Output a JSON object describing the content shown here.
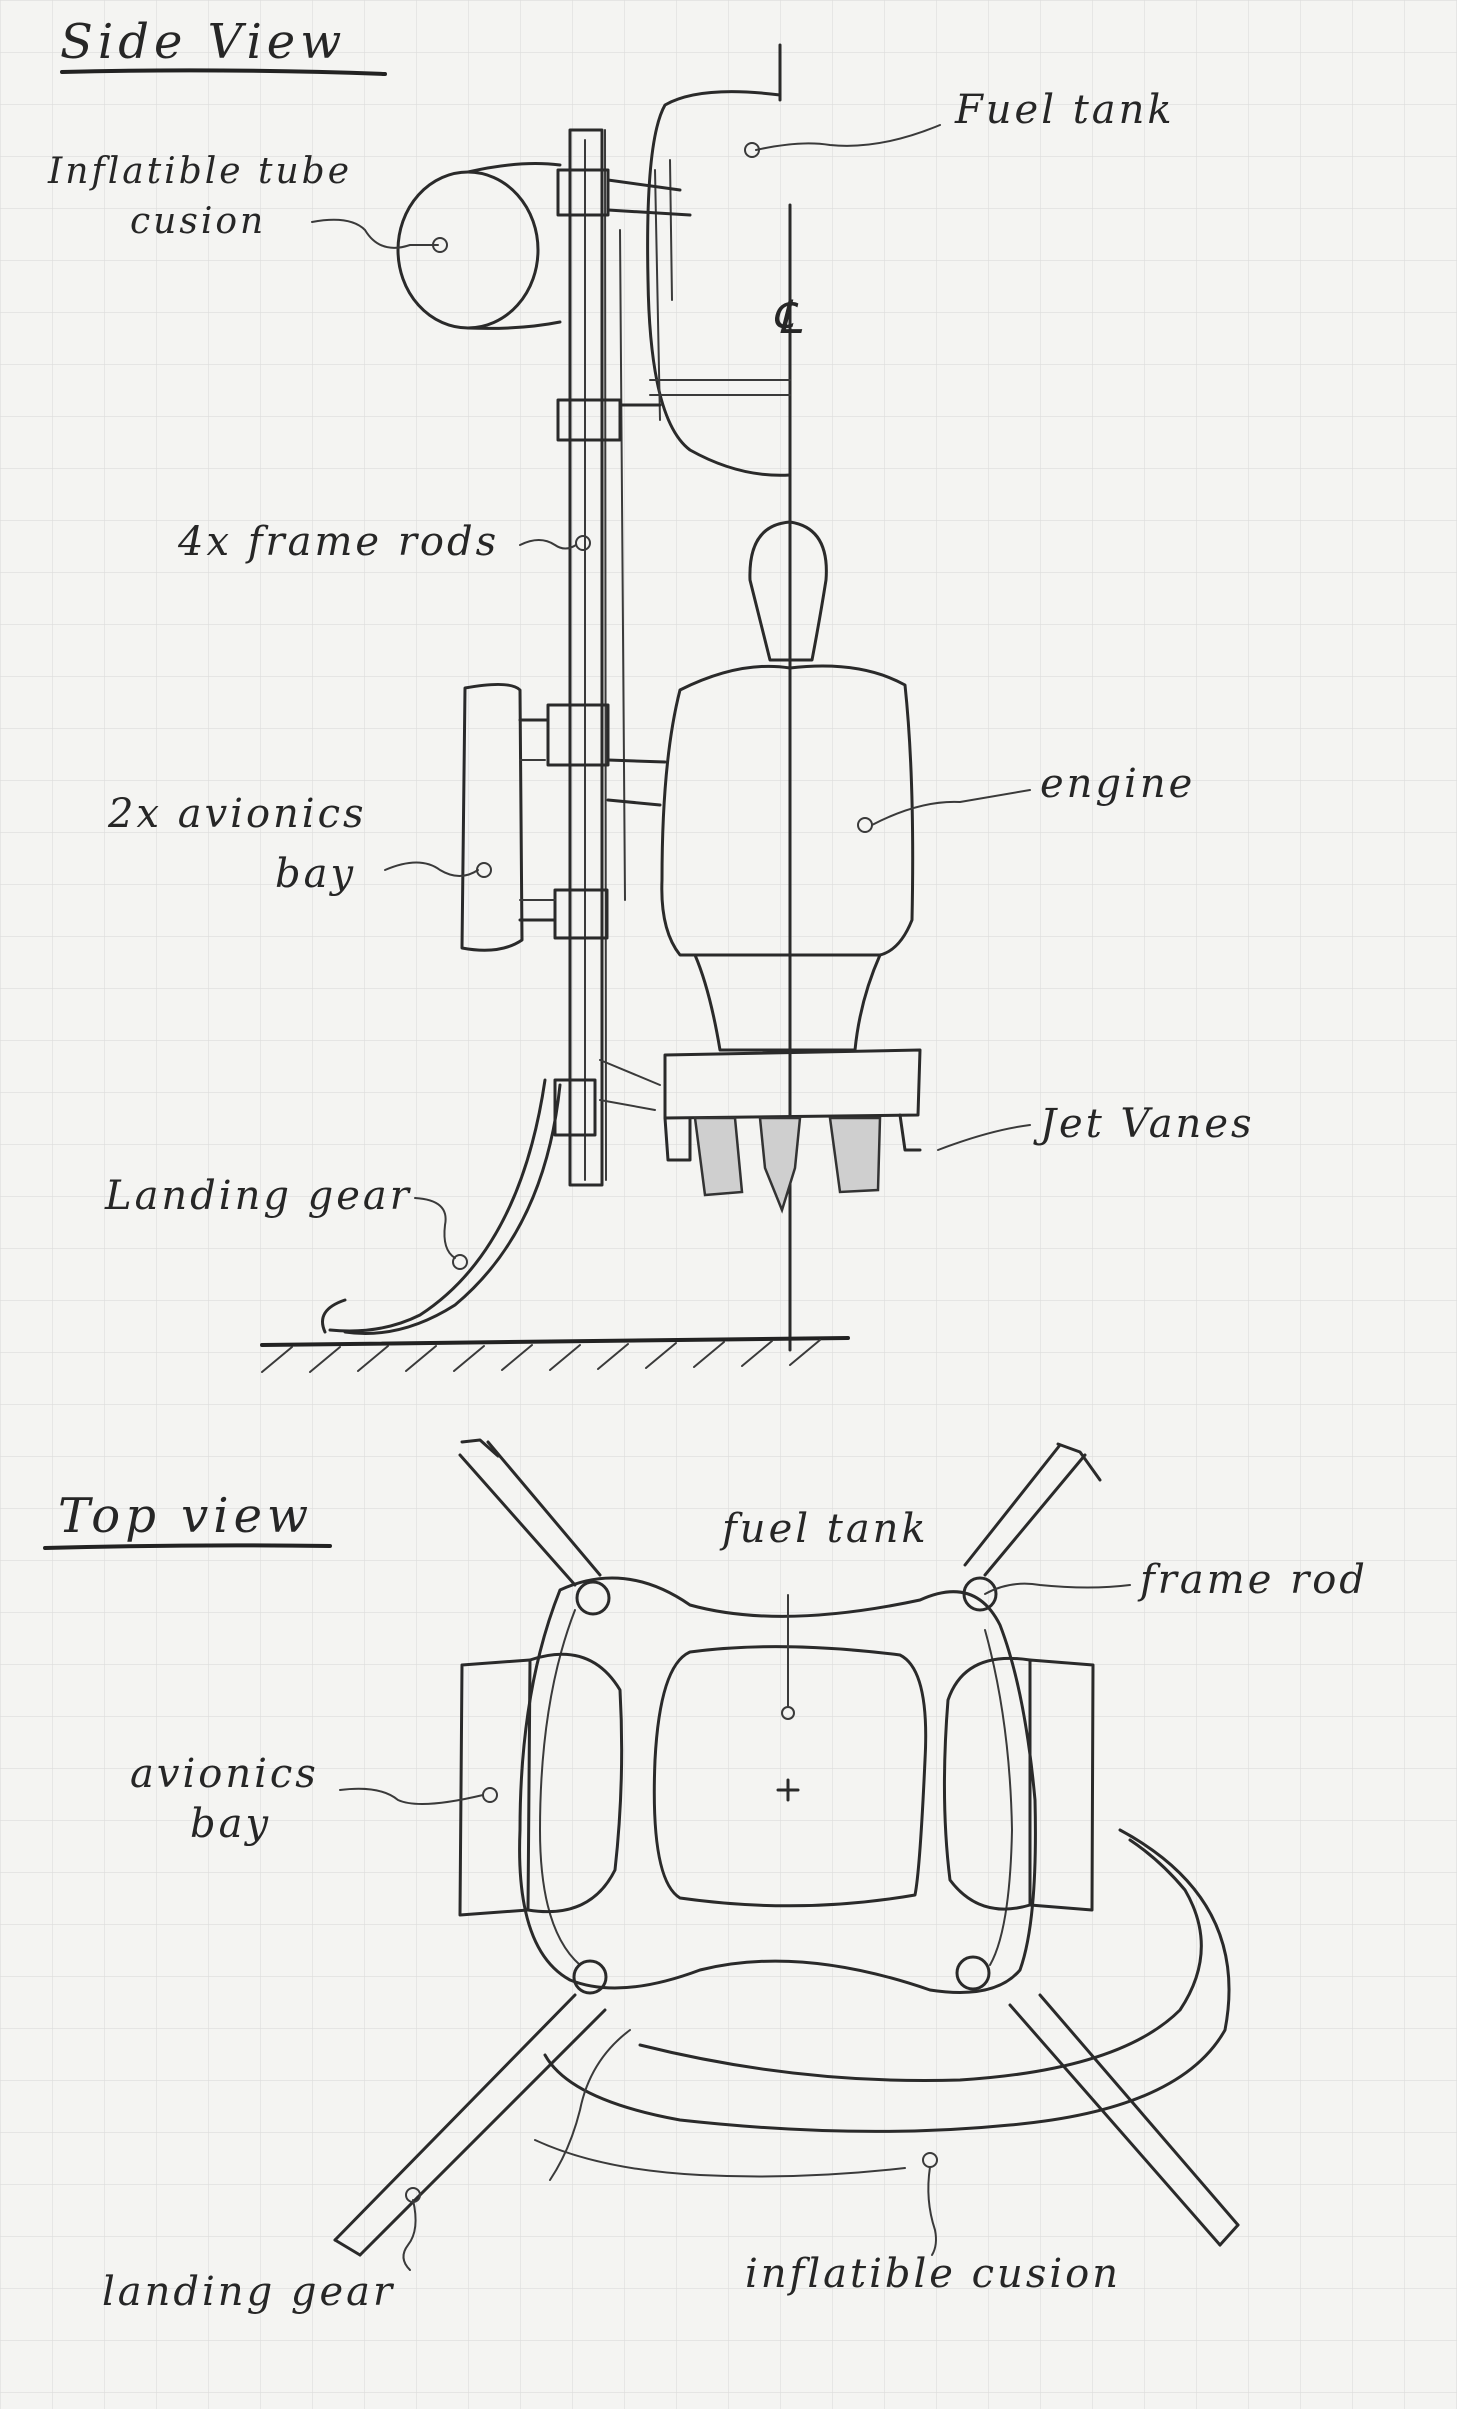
{
  "side_view": {
    "title": "Side View",
    "labels": {
      "fuel_tank": "Fuel tank",
      "inflatable_tube_cushion_line1": "Inflatible tube",
      "inflatable_tube_cushion_line2": "cusion",
      "centerline": "℄",
      "frame_rods": "4x frame rods",
      "avionics_bay_line1": "2x avionics",
      "avionics_bay_line2": "bay",
      "engine": "engine",
      "jet_vanes": "Jet Vanes",
      "landing_gear": "Landing gear"
    }
  },
  "top_view": {
    "title": "Top view",
    "labels": {
      "fuel_tank": "fuel tank",
      "frame_rod": "frame rod",
      "avionics_bay_line1": "avionics",
      "avionics_bay_line2": "bay",
      "landing_gear": "landing gear",
      "inflatable_cushion": "inflatible cusion",
      "center_mark": "+"
    }
  },
  "colors": {
    "paper": "#f4f4f2",
    "grid": "#dcdcdc",
    "pencil": "#2a2a2a"
  }
}
